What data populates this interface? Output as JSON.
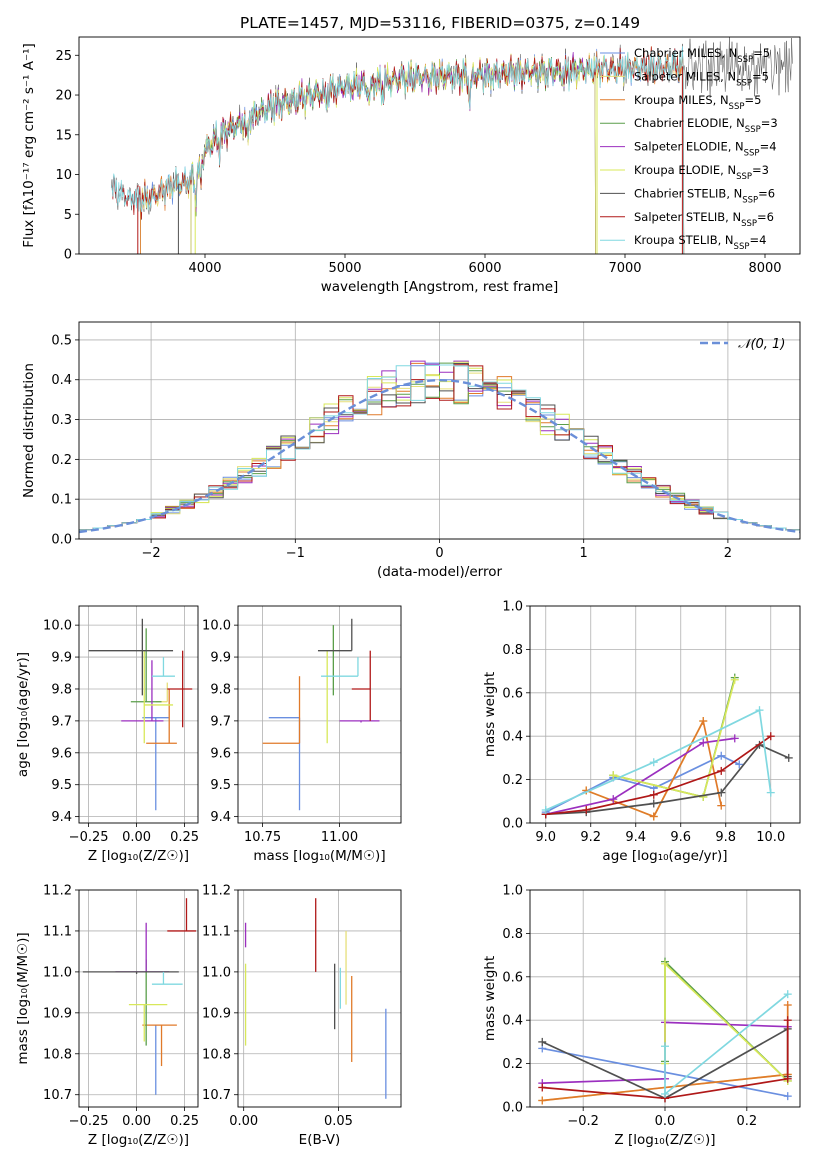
{
  "figure": {
    "title": "PLATE=1457, MJD=53116, FIBERID=0375, z=0.149"
  },
  "colors": {
    "Chabrier MILES": "#6a8fe0",
    "Salpeter MILES": "#e6df7a",
    "Kroupa MILES": "#e07a2a",
    "Chabrier ELODIE": "#5a9e4a",
    "Salpeter ELODIE": "#9b2fbf",
    "Kroupa ELODIE": "#d8e85a",
    "Chabrier STELIB": "#505050",
    "Salpeter STELIB": "#b01818",
    "Kroupa STELIB": "#80d8e0",
    "gaussian": "#6a8fd8",
    "grid": "#b0b0b0"
  },
  "chart_data": [
    {
      "id": "spectrum",
      "type": "line",
      "xlabel": "wavelength [Angstrom, rest frame]",
      "ylabel": "Flux [fλ10⁻¹⁷ erg cm⁻² s⁻¹ A⁻¹]",
      "xlim": [
        3100,
        8250
      ],
      "ylim": [
        0,
        27.3
      ],
      "xticks": [
        4000,
        5000,
        6000,
        7000,
        8000
      ],
      "yticks": [
        0,
        5,
        10,
        15,
        20,
        25
      ],
      "grid": false,
      "legend_position": "top-right",
      "continuum": {
        "x": [
          3330,
          3450,
          3600,
          3750,
          3900,
          3980,
          4100,
          4300,
          4500,
          4800,
          5000,
          5200,
          5400,
          5600,
          5900,
          6200,
          6500,
          6800,
          7100,
          7400
        ],
        "y": [
          8.5,
          7.2,
          7.0,
          8.5,
          9.3,
          12.5,
          15.0,
          17.0,
          18.7,
          20.2,
          21.0,
          21.5,
          22.0,
          22.3,
          22.5,
          22.8,
          23.0,
          23.2,
          23.4,
          23.6
        ]
      },
      "legend": [
        {
          "name": "Chabrier MILES, N$_{SSP}$=5",
          "label": "Chabrier MILES, N",
          "sub": "SSP",
          "tail": "=5"
        },
        {
          "name": "Salpeter MILES, N$_{SSP}$=5",
          "label": "Salpeter MILES, N",
          "sub": "SSP",
          "tail": "=5"
        },
        {
          "name": "Kroupa MILES, N$_{SSP}$=5",
          "label": "Kroupa MILES, N",
          "sub": "SSP",
          "tail": "=5"
        },
        {
          "name": "Chabrier ELODIE, N$_{SSP}$=3",
          "label": "Chabrier ELODIE, N",
          "sub": "SSP",
          "tail": "=3"
        },
        {
          "name": "Salpeter ELODIE, N$_{SSP}$=4",
          "label": "Salpeter ELODIE, N",
          "sub": "SSP",
          "tail": "=4"
        },
        {
          "name": "Kroupa ELODIE, N$_{SSP}$=3",
          "label": "Kroupa ELODIE, N",
          "sub": "SSP",
          "tail": "=3"
        },
        {
          "name": "Chabrier STELIB, N$_{SSP}$=6",
          "label": "Chabrier STELIB, N",
          "sub": "SSP",
          "tail": "=6"
        },
        {
          "name": "Salpeter STELIB, N$_{SSP}$=6",
          "label": "Salpeter STELIB, N",
          "sub": "SSP",
          "tail": "=6"
        },
        {
          "name": "Kroupa STELIB, N$_{SSP}$=4",
          "label": "Kroupa STELIB, N",
          "sub": "SSP",
          "tail": "=4"
        }
      ]
    },
    {
      "id": "residuals",
      "type": "line",
      "xlabel": "(data-model)/error",
      "ylabel": "Normed distribution",
      "xlim": [
        -2.5,
        2.5
      ],
      "ylim": [
        0,
        0.545
      ],
      "xticks": [
        -2,
        -1,
        0,
        1,
        2
      ],
      "yticks": [
        0.0,
        0.1,
        0.2,
        0.3,
        0.4,
        0.5
      ],
      "grid": true,
      "legend_position": "top-right",
      "legend": [
        {
          "name": "N(0,1)",
          "label": "𝒩(0, 1)"
        }
      ]
    },
    {
      "id": "age_vs_Z",
      "type": "scatter",
      "xlabel": "Z [log₁₀(Z/Z☉)]",
      "ylabel": "age  [log₁₀(age/yr)]",
      "xlim": [
        -0.3,
        0.32
      ],
      "ylim": [
        9.38,
        10.06
      ],
      "xticks": [
        -0.25,
        0.0,
        0.25
      ],
      "yticks": [
        9.4,
        9.5,
        9.6,
        9.7,
        9.8,
        9.9,
        10.0
      ],
      "grid": true,
      "points": [
        {
          "series": "Chabrier MILES",
          "x": 0.1,
          "y": 9.71,
          "xerr": [
            0.07,
            0.07
          ],
          "yerr": [
            0.29,
            0.0
          ]
        },
        {
          "series": "Salpeter MILES",
          "x": 0.16,
          "y": 9.76,
          "xerr": [
            0.06,
            0.0
          ],
          "yerr": [
            0.0,
            0.06
          ]
        },
        {
          "series": "Kroupa MILES",
          "x": 0.17,
          "y": 9.63,
          "xerr": [
            0.12,
            0.04
          ],
          "yerr": [
            0.0,
            0.17
          ]
        },
        {
          "series": "Chabrier ELODIE",
          "x": 0.05,
          "y": 9.76,
          "xerr": [
            0.08,
            0.08
          ],
          "yerr": [
            0.0,
            0.23
          ]
        },
        {
          "series": "Salpeter ELODIE",
          "x": 0.08,
          "y": 9.7,
          "xerr": [
            0.16,
            0.06
          ],
          "yerr": [
            0.0,
            0.19
          ]
        },
        {
          "series": "Kroupa ELODIE",
          "x": 0.04,
          "y": 9.75,
          "xerr": [
            0.0,
            0.15
          ],
          "yerr": [
            0.12,
            0.17
          ]
        },
        {
          "series": "Chabrier STELIB",
          "x": 0.03,
          "y": 9.92,
          "xerr": [
            0.28,
            0.16
          ],
          "yerr": [
            0.14,
            0.1
          ]
        },
        {
          "series": "Salpeter STELIB",
          "x": 0.24,
          "y": 9.8,
          "xerr": [
            0.08,
            0.05
          ],
          "yerr": [
            0.12,
            0.12
          ]
        },
        {
          "series": "Kroupa STELIB",
          "x": 0.14,
          "y": 9.84,
          "xerr": [
            0.06,
            0.06
          ],
          "yerr": [
            0.0,
            0.06
          ]
        }
      ]
    },
    {
      "id": "age_vs_mass",
      "type": "scatter",
      "xlabel": "mass [log₁₀(M/M☉)]",
      "ylabel": "",
      "xlim": [
        10.67,
        11.2
      ],
      "ylim": [
        9.38,
        10.06
      ],
      "xticks": [
        10.75,
        11.0
      ],
      "yticks": [
        9.4,
        9.5,
        9.6,
        9.7,
        9.8,
        9.9,
        10.0
      ],
      "grid": true,
      "points": [
        {
          "series": "Chabrier MILES",
          "x": 10.87,
          "y": 9.71,
          "xerr": [
            0.1,
            0.0
          ],
          "yerr": [
            0.29,
            0.0
          ]
        },
        {
          "series": "Kroupa MILES",
          "x": 10.87,
          "y": 9.63,
          "xerr": [
            0.12,
            0.0
          ],
          "yerr": [
            0.0,
            0.21
          ]
        },
        {
          "series": "Chabrier ELODIE",
          "x": 10.98,
          "y": 9.78,
          "xerr": [
            0.0,
            0.0
          ],
          "yerr": [
            0.0,
            0.22
          ]
        },
        {
          "series": "Salpeter ELODIE",
          "x": 11.07,
          "y": 9.7,
          "xerr": [
            0.07,
            0.06
          ],
          "yerr": [
            0.0,
            0.0
          ]
        },
        {
          "series": "Kroupa ELODIE",
          "x": 10.96,
          "y": 9.75,
          "xerr": [
            0.0,
            0.0
          ],
          "yerr": [
            0.12,
            0.17
          ]
        },
        {
          "series": "Chabrier STELIB",
          "x": 11.04,
          "y": 9.92,
          "xerr": [
            0.11,
            0.0
          ],
          "yerr": [
            0.0,
            0.1
          ]
        },
        {
          "series": "Salpeter STELIB",
          "x": 11.1,
          "y": 9.8,
          "xerr": [
            0.06,
            0.0
          ],
          "yerr": [
            0.1,
            0.12
          ]
        },
        {
          "series": "Kroupa STELIB",
          "x": 11.06,
          "y": 9.84,
          "xerr": [
            0.12,
            0.0
          ],
          "yerr": [
            0.0,
            0.06
          ]
        }
      ]
    },
    {
      "id": "weight_vs_age",
      "type": "line",
      "xlabel": "age  [log₁₀(age/yr)]",
      "ylabel": "mass weight",
      "xlim": [
        8.93,
        10.13
      ],
      "ylim": [
        0,
        1.0
      ],
      "xticks": [
        9.0,
        9.2,
        9.4,
        9.6,
        9.8,
        10.0
      ],
      "yticks": [
        0.0,
        0.2,
        0.4,
        0.6,
        0.8,
        1.0
      ],
      "grid": true,
      "series": [
        {
          "name": "Chabrier MILES",
          "x": [
            9.0,
            9.3,
            9.48,
            9.78,
            9.86
          ],
          "y": [
            0.05,
            0.21,
            0.16,
            0.31,
            0.27
          ]
        },
        {
          "name": "Salpeter MILES",
          "x": [
            9.18,
            9.48,
            9.7
          ],
          "y": [
            0.15,
            0.03,
            0.47
          ]
        },
        {
          "name": "Kroupa MILES",
          "x": [
            9.18,
            9.48,
            9.7,
            9.78
          ],
          "y": [
            0.15,
            0.03,
            0.47,
            0.08
          ]
        },
        {
          "name": "Chabrier ELODIE",
          "x": [
            9.3,
            9.7,
            9.84
          ],
          "y": [
            0.22,
            0.12,
            0.67
          ]
        },
        {
          "name": "Salpeter ELODIE",
          "x": [
            9.0,
            9.3,
            9.7,
            9.84
          ],
          "y": [
            0.04,
            0.11,
            0.37,
            0.39
          ]
        },
        {
          "name": "Kroupa ELODIE",
          "x": [
            9.3,
            9.7,
            9.84
          ],
          "y": [
            0.22,
            0.12,
            0.66
          ]
        },
        {
          "name": "Chabrier STELIB",
          "x": [
            9.0,
            9.18,
            9.48,
            9.78,
            9.95,
            10.08
          ],
          "y": [
            0.04,
            0.05,
            0.09,
            0.14,
            0.36,
            0.3
          ]
        },
        {
          "name": "Salpeter STELIB",
          "x": [
            9.0,
            9.18,
            9.48,
            9.78,
            10.0
          ],
          "y": [
            0.04,
            0.06,
            0.13,
            0.24,
            0.4
          ]
        },
        {
          "name": "Kroupa STELIB",
          "x": [
            9.0,
            9.48,
            9.95,
            10.0
          ],
          "y": [
            0.06,
            0.28,
            0.52,
            0.14
          ]
        }
      ]
    },
    {
      "id": "mass_vs_Z",
      "type": "scatter",
      "xlabel": "Z [log₁₀(Z/Z☉)]",
      "ylabel": "mass [log₁₀(M/M☉)]",
      "xlim": [
        -0.3,
        0.32
      ],
      "ylim": [
        10.67,
        11.2
      ],
      "xticks": [
        -0.25,
        0.0,
        0.25
      ],
      "yticks": [
        10.7,
        10.8,
        10.9,
        11.0,
        11.1,
        11.2
      ],
      "grid": true,
      "points": [
        {
          "series": "Chabrier MILES",
          "x": 0.1,
          "y": 10.87,
          "xerr": [
            0.0,
            0.0
          ],
          "yerr": [
            0.17,
            0.0
          ]
        },
        {
          "series": "Kroupa MILES",
          "x": 0.13,
          "y": 10.87,
          "xerr": [
            0.1,
            0.08
          ],
          "yerr": [
            0.1,
            0.0
          ]
        },
        {
          "series": "Chabrier ELODIE",
          "x": 0.05,
          "y": 10.92,
          "xerr": [
            0.0,
            0.0
          ],
          "yerr": [
            0.1,
            0.11
          ]
        },
        {
          "series": "Salpeter ELODIE",
          "x": 0.05,
          "y": 11.0,
          "xerr": [
            0.16,
            0.12
          ],
          "yerr": [
            0.0,
            0.12
          ]
        },
        {
          "series": "Kroupa ELODIE",
          "x": 0.04,
          "y": 10.92,
          "xerr": [
            0.08,
            0.12
          ],
          "yerr": [
            0.09,
            0.0
          ]
        },
        {
          "series": "Chabrier STELIB",
          "x": 0.0,
          "y": 11.0,
          "xerr": [
            0.28,
            0.22
          ],
          "yerr": [
            0.0,
            0.0
          ]
        },
        {
          "series": "Salpeter STELIB",
          "x": 0.26,
          "y": 11.1,
          "xerr": [
            0.1,
            0.05
          ],
          "yerr": [
            0.0,
            0.08
          ]
        },
        {
          "series": "Kroupa STELIB",
          "x": 0.14,
          "y": 10.97,
          "xerr": [
            0.06,
            0.1
          ],
          "yerr": [
            0.0,
            0.03
          ]
        }
      ]
    },
    {
      "id": "mass_vs_EBV",
      "type": "scatter",
      "xlabel": "E(B-V)",
      "ylabel": "",
      "xlim": [
        -0.003,
        0.083
      ],
      "ylim": [
        10.67,
        11.2
      ],
      "xticks": [
        0.0,
        0.05
      ],
      "yticks": [
        10.7,
        10.8,
        10.9,
        11.0,
        11.1,
        11.2
      ],
      "grid": true,
      "points": [
        {
          "series": "Salpeter ELODIE",
          "x": 0.001,
          "y": 11.06,
          "xerr": [
            0.0,
            0.0
          ],
          "yerr": [
            0.0,
            0.06
          ]
        },
        {
          "series": "Kroupa ELODIE",
          "x": 0.001,
          "y": 10.92,
          "xerr": [
            0.0,
            0.0
          ],
          "yerr": [
            0.1,
            0.1
          ]
        },
        {
          "series": "Salpeter STELIB",
          "x": 0.038,
          "y": 11.09,
          "xerr": [
            0.0,
            0.0
          ],
          "yerr": [
            0.09,
            0.09
          ]
        },
        {
          "series": "Chabrier STELIB",
          "x": 0.048,
          "y": 10.94,
          "xerr": [
            0.0,
            0.0
          ],
          "yerr": [
            0.08,
            0.08
          ]
        },
        {
          "series": "Kroupa STELIB",
          "x": 0.051,
          "y": 10.96,
          "xerr": [
            0.0,
            0.0
          ],
          "yerr": [
            0.05,
            0.05
          ]
        },
        {
          "series": "Salpeter MILES",
          "x": 0.054,
          "y": 11.01,
          "xerr": [
            0.0,
            0.0
          ],
          "yerr": [
            0.09,
            0.09
          ]
        },
        {
          "series": "Kroupa MILES",
          "x": 0.057,
          "y": 10.89,
          "xerr": [
            0.0,
            0.0
          ],
          "yerr": [
            0.11,
            0.1
          ]
        },
        {
          "series": "Chabrier MILES",
          "x": 0.075,
          "y": 10.81,
          "xerr": [
            0.0,
            0.0
          ],
          "yerr": [
            0.12,
            0.1
          ]
        }
      ]
    },
    {
      "id": "weight_vs_Z",
      "type": "line",
      "xlabel": "Z [log₁₀(Z/Z☉)]",
      "ylabel": "mass weight",
      "xlim": [
        -0.33,
        0.33
      ],
      "ylim": [
        0,
        1.0
      ],
      "xticks": [
        -0.2,
        0.0,
        0.2
      ],
      "yticks": [
        0.0,
        0.2,
        0.4,
        0.6,
        0.8,
        1.0
      ],
      "grid": true,
      "series": [
        {
          "name": "Chabrier MILES",
          "x": [
            -0.3,
            0.3
          ],
          "y": [
            0.27,
            0.05
          ]
        },
        {
          "name": "Salpeter MILES",
          "x": [
            -0.3,
            0.3
          ],
          "y": [
            0.03,
            0.15
          ]
        },
        {
          "name": "Kroupa MILES",
          "x": [
            -0.3,
            0.3,
            0.3
          ],
          "y": [
            0.03,
            0.15,
            0.47
          ]
        },
        {
          "name": "Chabrier ELODIE",
          "x": [
            0.0,
            0.0,
            0.3
          ],
          "y": [
            0.21,
            0.67,
            0.12
          ]
        },
        {
          "name": "Salpeter ELODIE",
          "x": [
            -0.3,
            0.0,
            0.0,
            0.3
          ],
          "y": [
            0.11,
            0.13,
            0.39,
            0.37
          ]
        },
        {
          "name": "Kroupa ELODIE",
          "x": [
            0.0,
            0.0,
            0.3
          ],
          "y": [
            0.2,
            0.66,
            0.12
          ]
        },
        {
          "name": "Chabrier STELIB",
          "x": [
            -0.3,
            0.0,
            0.3,
            0.3
          ],
          "y": [
            0.3,
            0.04,
            0.36,
            0.14
          ]
        },
        {
          "name": "Salpeter STELIB",
          "x": [
            -0.3,
            0.0,
            0.3,
            0.3
          ],
          "y": [
            0.09,
            0.04,
            0.13,
            0.4
          ]
        },
        {
          "name": "Kroupa STELIB",
          "x": [
            0.0,
            0.0,
            0.3
          ],
          "y": [
            0.28,
            0.06,
            0.52
          ]
        }
      ]
    }
  ]
}
